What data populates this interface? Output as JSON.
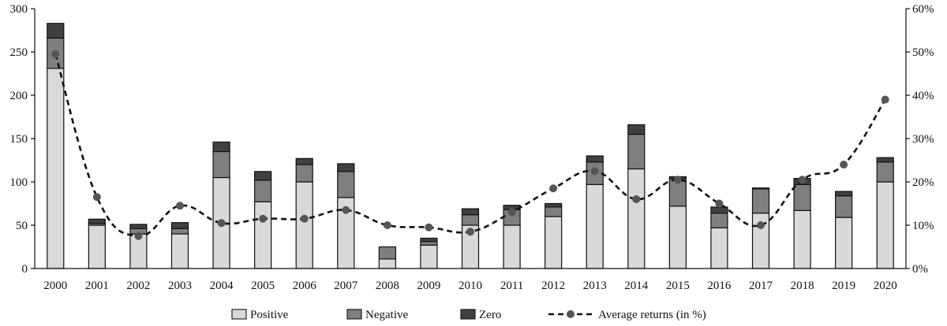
{
  "chart_data": {
    "type": "bar",
    "subtype": "stacked-bar-with-line",
    "categories": [
      "2000",
      "2001",
      "2002",
      "2003",
      "2004",
      "2005",
      "2006",
      "2007",
      "2008",
      "2009",
      "2010",
      "2011",
      "2012",
      "2013",
      "2014",
      "2015",
      "2016",
      "2017",
      "2018",
      "2019",
      "2020"
    ],
    "series": [
      {
        "name": "Positive",
        "kind": "bar",
        "axis": "left",
        "color": "#d9d9d9",
        "values": [
          231,
          50,
          40,
          40,
          105,
          77,
          100,
          82,
          11,
          27,
          50,
          50,
          60,
          97,
          115,
          72,
          47,
          64,
          67,
          59,
          100
        ]
      },
      {
        "name": "Negative",
        "kind": "bar",
        "axis": "left",
        "color": "#7f7f7f",
        "values": [
          35,
          2,
          6,
          6,
          30,
          25,
          20,
          30,
          14,
          4,
          12,
          18,
          11,
          26,
          40,
          32,
          17,
          28,
          30,
          25,
          23
        ]
      },
      {
        "name": "Zero",
        "kind": "bar",
        "axis": "left",
        "color": "#404040",
        "values": [
          17,
          5,
          5,
          7,
          11,
          10,
          7,
          9,
          0,
          4,
          7,
          5,
          4,
          7,
          11,
          2,
          7,
          1,
          7,
          5,
          5
        ]
      },
      {
        "name": "Average returns (in %)",
        "kind": "line",
        "axis": "right",
        "color": "#555555",
        "values": [
          49.5,
          16.5,
          7.5,
          14.5,
          10.5,
          11.5,
          11.5,
          13.5,
          10,
          9.5,
          8.5,
          13,
          18.5,
          22.5,
          16,
          20.5,
          15,
          10,
          20.5,
          24,
          39
        ]
      }
    ],
    "y_left": {
      "ticks": [
        "0",
        "50",
        "100",
        "150",
        "200",
        "250",
        "300"
      ],
      "ylim": [
        0,
        300
      ]
    },
    "y_right": {
      "ticks": [
        "0%",
        "10%",
        "20%",
        "30%",
        "40%",
        "50%",
        "60%"
      ],
      "ylim": [
        0,
        60
      ]
    },
    "grid": false,
    "legend_position": "bottom",
    "title": "",
    "xlabel": "",
    "ylabel": ""
  }
}
